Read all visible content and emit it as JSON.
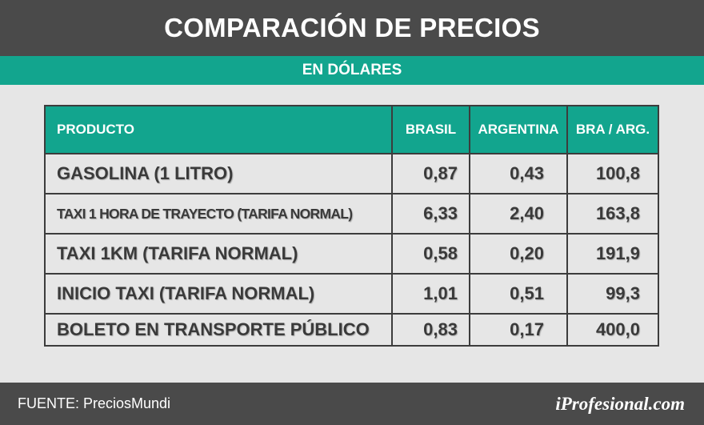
{
  "header": {
    "title": "COMPARACIÓN DE PRECIOS"
  },
  "subheader": {
    "label": "EN DÓLARES"
  },
  "table": {
    "columns": [
      "PRODUCTO",
      "BRASIL",
      "ARGENTINA",
      "BRA / ARG."
    ],
    "rows": [
      {
        "producto": "GASOLINA (1 LITRO)",
        "brasil": "0,87",
        "argentina": "0,43",
        "ratio": "100,8"
      },
      {
        "producto": "TAXI 1 HORA DE TRAYECTO (TARIFA NORMAL)",
        "brasil": "6,33",
        "argentina": "2,40",
        "ratio": "163,8"
      },
      {
        "producto": "TAXI 1KM (TARIFA NORMAL)",
        "brasil": "0,58",
        "argentina": "0,20",
        "ratio": "191,9"
      },
      {
        "producto": "INICIO TAXI (TARIFA NORMAL)",
        "brasil": "1,01",
        "argentina": "0,51",
        "ratio": "99,3"
      },
      {
        "producto": "BOLETO EN TRANSPORTE PÚBLICO",
        "brasil": "0,83",
        "argentina": "0,17",
        "ratio": "400,0"
      }
    ]
  },
  "footer": {
    "source": "FUENTE: PreciosMundi",
    "logo": "iProfesional.com"
  },
  "colors": {
    "dark": "#4a4a4a",
    "teal": "#12a58e",
    "background": "#e6e6e6",
    "border": "#3c3c3c"
  }
}
